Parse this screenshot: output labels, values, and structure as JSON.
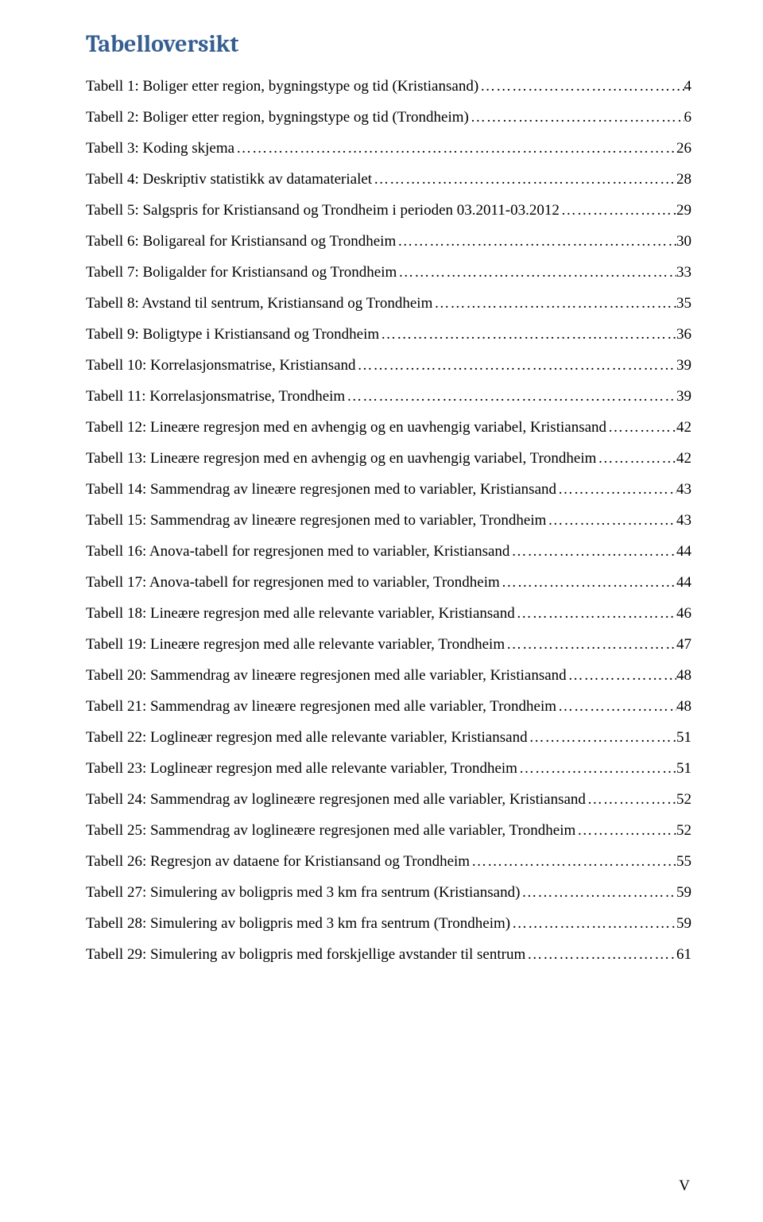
{
  "title": "Tabelloversikt",
  "title_color": "#365f91",
  "title_fontsize": 30,
  "body_fontsize": 19,
  "body_color": "#000000",
  "background_color": "#ffffff",
  "page_number": "V",
  "entries": [
    {
      "label": "Tabell 1: Boliger etter region, bygningstype og tid (Kristiansand)",
      "page": "4"
    },
    {
      "label": "Tabell 2: Boliger etter region, bygningstype og tid (Trondheim)",
      "page": "6"
    },
    {
      "label": "Tabell 3: Koding skjema",
      "page": "26"
    },
    {
      "label": "Tabell 4: Deskriptiv statistikk av datamaterialet",
      "page": "28"
    },
    {
      "label": "Tabell 5: Salgspris for Kristiansand og Trondheim i perioden 03.2011-03.2012",
      "page": "29"
    },
    {
      "label": "Tabell 6: Boligareal for Kristiansand og Trondheim",
      "page": "30"
    },
    {
      "label": "Tabell 7: Boligalder for Kristiansand og Trondheim",
      "page": "33"
    },
    {
      "label": "Tabell 8: Avstand til sentrum, Kristiansand og Trondheim",
      "page": "35"
    },
    {
      "label": "Tabell 9: Boligtype i Kristiansand og Trondheim",
      "page": "36"
    },
    {
      "label": "Tabell 10: Korrelasjonsmatrise, Kristiansand",
      "page": "39"
    },
    {
      "label": "Tabell 11: Korrelasjonsmatrise, Trondheim",
      "page": "39"
    },
    {
      "label": "Tabell 12: Lineære regresjon med en avhengig og en uavhengig variabel, Kristiansand",
      "page": "42"
    },
    {
      "label": "Tabell 13: Lineære regresjon med en avhengig og en uavhengig variabel, Trondheim",
      "page": "42"
    },
    {
      "label": "Tabell 14: Sammendrag av lineære regresjonen med to variabler, Kristiansand",
      "page": "43"
    },
    {
      "label": "Tabell 15: Sammendrag av lineære regresjonen med to variabler, Trondheim",
      "page": "43"
    },
    {
      "label": "Tabell 16: Anova-tabell for regresjonen med to variabler, Kristiansand",
      "page": "44"
    },
    {
      "label": "Tabell 17: Anova-tabell for regresjonen med to variabler, Trondheim",
      "page": "44"
    },
    {
      "label": "Tabell 18: Lineære regresjon med alle relevante variabler, Kristiansand",
      "page": "46"
    },
    {
      "label": "Tabell 19: Lineære regresjon med alle relevante variabler, Trondheim",
      "page": "47"
    },
    {
      "label": "Tabell 20: Sammendrag av lineære regresjonen med alle variabler, Kristiansand",
      "page": "48"
    },
    {
      "label": "Tabell 21: Sammendrag av lineære regresjonen med alle variabler, Trondheim",
      "page": "48"
    },
    {
      "label": "Tabell 22: Loglineær regresjon med alle relevante variabler, Kristiansand",
      "page": "51"
    },
    {
      "label": "Tabell 23: Loglineær regresjon med alle relevante variabler, Trondheim",
      "page": "51"
    },
    {
      "label": "Tabell 24: Sammendrag av loglineære regresjonen med alle variabler, Kristiansand",
      "page": "52"
    },
    {
      "label": "Tabell 25: Sammendrag av loglineære regresjonen med alle variabler, Trondheim",
      "page": "52"
    },
    {
      "label": "Tabell 26: Regresjon av dataene for Kristiansand og Trondheim",
      "page": "55"
    },
    {
      "label": "Tabell 27: Simulering av boligpris med 3 km fra sentrum (Kristiansand)",
      "page": "59"
    },
    {
      "label": "Tabell 28: Simulering av boligpris med 3 km fra sentrum (Trondheim)",
      "page": "59"
    },
    {
      "label": "Tabell 29: Simulering av boligpris med forskjellige avstander til sentrum",
      "page": "61"
    }
  ]
}
